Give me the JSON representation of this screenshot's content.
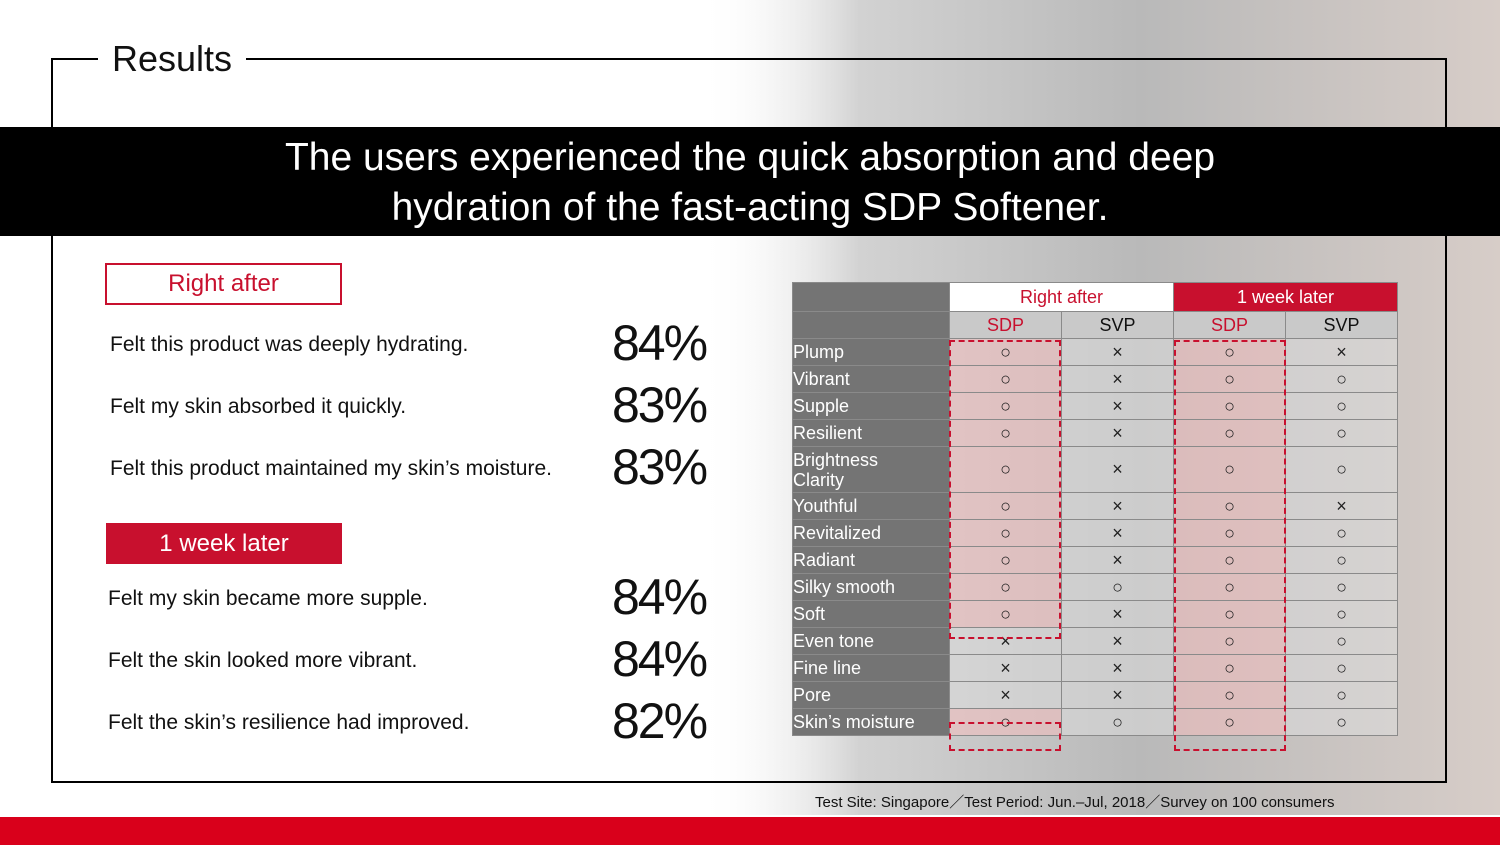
{
  "section_title": "Results",
  "headline": {
    "line1": "The users experienced the quick absorption and deep",
    "line2": "hydration of the fast-acting SDP Softener."
  },
  "right_after": {
    "label": "Right after",
    "items": [
      {
        "text": "Felt this product was deeply hydrating.",
        "value": "84%"
      },
      {
        "text": "Felt my skin absorbed it quickly.",
        "value": "83%"
      },
      {
        "text": "Felt this product maintained my skin’s moisture.",
        "value": "83%"
      }
    ]
  },
  "week_later": {
    "label": "1 week later",
    "items": [
      {
        "text": "Felt my skin became more supple.",
        "value": "84%"
      },
      {
        "text": "Felt the skin looked more vibrant.",
        "value": "84%"
      },
      {
        "text": "Felt the skin’s resilience had improved.",
        "value": "82%"
      }
    ]
  },
  "table": {
    "group_headers": [
      "Right after",
      "1 week later"
    ],
    "sub_headers": [
      "SDP",
      "SVP",
      "SDP",
      "SVP"
    ],
    "rows": [
      {
        "attr": "Plump",
        "vals": [
          "○",
          "×",
          "○",
          "×"
        ]
      },
      {
        "attr": "Vibrant",
        "vals": [
          "○",
          "×",
          "○",
          "○"
        ]
      },
      {
        "attr": "Supple",
        "vals": [
          "○",
          "×",
          "○",
          "○"
        ]
      },
      {
        "attr": "Resilient",
        "vals": [
          "○",
          "×",
          "○",
          "○"
        ]
      },
      {
        "attr": "Brightness Clarity",
        "attr_line1": "Brightness",
        "attr_line2": "Clarity",
        "vals": [
          "○",
          "×",
          "○",
          "○"
        ]
      },
      {
        "attr": "Youthful",
        "vals": [
          "○",
          "×",
          "○",
          "×"
        ]
      },
      {
        "attr": "Revitalized",
        "vals": [
          "○",
          "×",
          "○",
          "○"
        ]
      },
      {
        "attr": "Radiant",
        "vals": [
          "○",
          "×",
          "○",
          "○"
        ]
      },
      {
        "attr": "Silky smooth",
        "vals": [
          "○",
          "○",
          "○",
          "○"
        ]
      },
      {
        "attr": "Soft",
        "vals": [
          "○",
          "×",
          "○",
          "○"
        ]
      },
      {
        "attr": "Even tone",
        "vals": [
          "×",
          "×",
          "○",
          "○"
        ]
      },
      {
        "attr": "Fine line",
        "vals": [
          "×",
          "×",
          "○",
          "○"
        ]
      },
      {
        "attr": "Pore",
        "vals": [
          "×",
          "×",
          "○",
          "○"
        ]
      },
      {
        "attr": "Skin’s moisture",
        "vals": [
          "○",
          "○",
          "○",
          "○"
        ]
      }
    ]
  },
  "footnote": "Test Site: Singapore／Test Period: Jun.–Jul, 2018／Survey on 100 consumers",
  "colors": {
    "brand_red": "#c8102e",
    "bar_red": "#d9001b",
    "banner": "#000000"
  }
}
